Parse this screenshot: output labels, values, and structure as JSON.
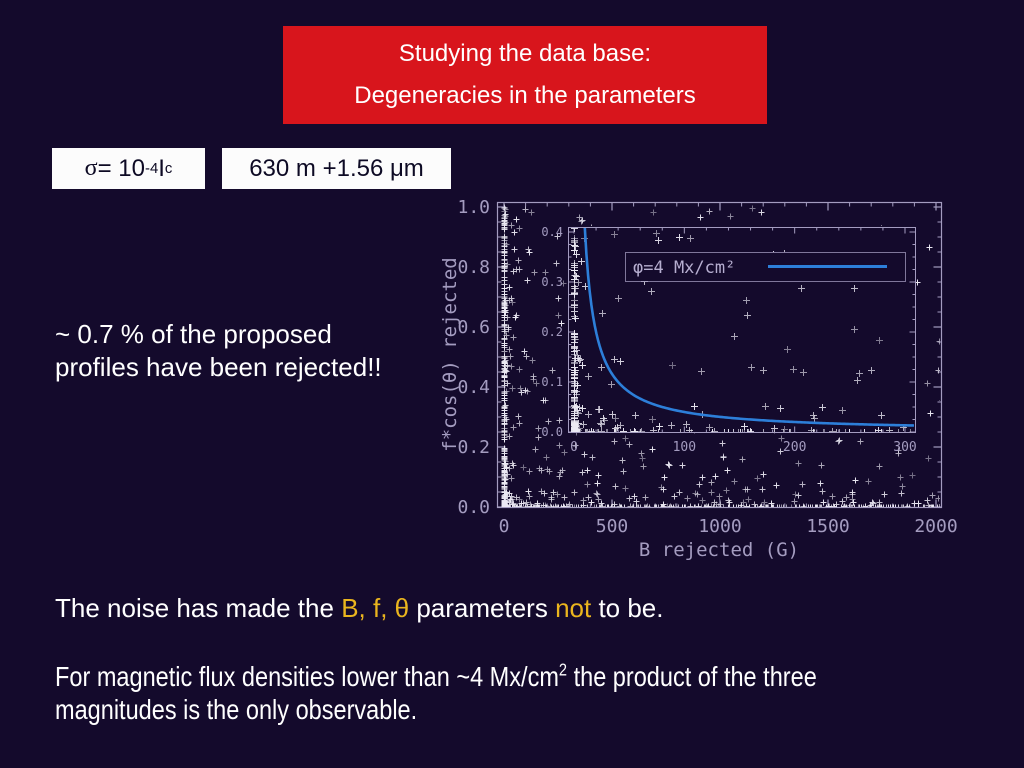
{
  "colors": {
    "bg": "#140a2c",
    "title-bg": "#d8151c",
    "gold": "#eab51e",
    "box-text": "#0d0a24",
    "axis": "#a49cc0",
    "marker": "#eceaf4",
    "curve": "#2d7fd9",
    "legend-text": "#b6aed0"
  },
  "title": {
    "line1": "Studying the data base:",
    "line2": "Degeneracies in the parameters"
  },
  "formulas": {
    "sigma": {
      "sym": "σ",
      "base": " = 10",
      "sup": "-4",
      "base2": " I",
      "sub": "c"
    },
    "wavelengths": "630 m +1.56 μm"
  },
  "note": "~ 0.7 % of the proposed\nprofiles have been rejected!!",
  "bottom": {
    "line1": {
      "parts": [
        {
          "text": "The noise has made the ",
          "color": "#ffffff"
        },
        {
          "text": "B, f, θ",
          "color": "#eab51e"
        },
        {
          "text": " parameters ",
          "color": "#ffffff"
        },
        {
          "text": "not",
          "color": "#eab51e"
        },
        {
          "text": " to be.",
          "color": "#ffffff"
        }
      ]
    },
    "line2": {
      "a": "For magnetic flux densities lower than ~4 Mx/cm",
      "sup": "2",
      "b": " the product of the three",
      "c": "magnitudes is the only observable."
    }
  },
  "chart_data": {
    "type": "scatter",
    "title": "",
    "main": {
      "xlabel": "B rejected (G)",
      "ylabel": "f*cos(θ) rejected",
      "xlim": [
        0,
        2020
      ],
      "ylim": [
        0,
        1.02
      ],
      "x_ticks": [
        [
          0,
          "0"
        ],
        [
          500,
          "500"
        ],
        [
          1000,
          "1000"
        ],
        [
          1500,
          "1500"
        ],
        [
          2000,
          "2000"
        ]
      ],
      "y_ticks": [
        [
          0,
          "0.0"
        ],
        [
          0.2,
          "0.2"
        ],
        [
          0.4,
          "0.4"
        ],
        [
          0.6,
          "0.6"
        ],
        [
          0.8,
          "0.8"
        ],
        [
          1,
          "1.0"
        ]
      ],
      "x_minor": 100,
      "y_minor": 0.05,
      "grid": false
    },
    "inset": {
      "xlim": [
        0,
        309
      ],
      "ylim": [
        0,
        0.41
      ],
      "x_ticks": [
        [
          0,
          "0"
        ],
        [
          100,
          "100"
        ],
        [
          200,
          "200"
        ],
        [
          300,
          "300"
        ]
      ],
      "y_ticks": [
        [
          0,
          "0.0"
        ],
        [
          0.1,
          "0.1"
        ],
        [
          0.2,
          "0.2"
        ],
        [
          0.3,
          "0.3"
        ],
        [
          0.4,
          "0.4"
        ]
      ],
      "x_minor": 20,
      "y_minor": 0.025,
      "legend": {
        "label": "φ=4 Mx/cm²",
        "position": "upper-center"
      },
      "curve": {
        "equation": "f*cos(θ) = φ/B",
        "phi": 4
      }
    },
    "scatter": {
      "description": "Rejected synthetic profiles: white plus markers densely packed near B=0 and near f*cos(θ)=0 (flux below ~4 Mx/cm²), sparse elsewhere; identical population shown zoomed in the inset.",
      "marker": "plus",
      "seed": 20471,
      "groups": [
        {
          "n": 240,
          "x_scale": 2055,
          "x_pow": 14,
          "y_scale": 0.5,
          "y_pow": 8
        },
        {
          "n": 300,
          "x_scale": 2055,
          "x_pow": 10,
          "y_scale": 1.0,
          "y_pow": 1
        },
        {
          "n": 310,
          "x_scale": 2055,
          "x_pow": 1,
          "y_scale": 1.0,
          "y_pow": 14
        },
        {
          "n": 150,
          "x_scale": 2055,
          "x_pow": 1.7,
          "y_scale": 1.0,
          "y_pow": 2.6
        }
      ]
    }
  }
}
